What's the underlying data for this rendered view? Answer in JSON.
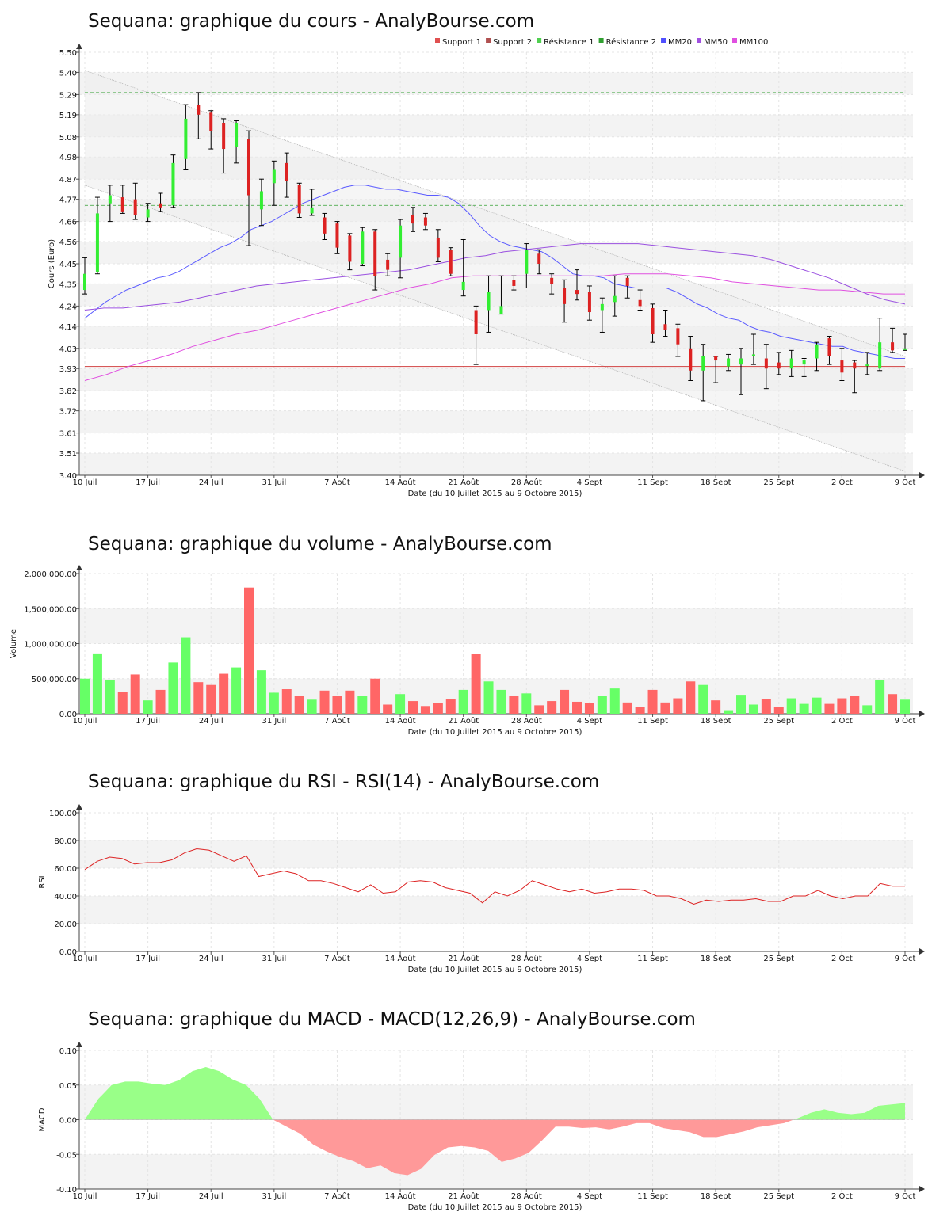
{
  "chart_data": [
    {
      "type": "candlestick",
      "title": "Sequana: graphique du cours - AnalyBourse.com",
      "xlabel": "Date (du 10 Juillet 2015 au 9 Octobre 2015)",
      "ylabel": "Cours (Euro)",
      "ylim": [
        3.4,
        5.5
      ],
      "y_ticks": [
        "3.40",
        "3.51",
        "3.61",
        "3.72",
        "3.82",
        "3.93",
        "4.03",
        "4.14",
        "4.24",
        "4.35",
        "4.45",
        "4.56",
        "4.66",
        "4.77",
        "4.87",
        "4.98",
        "5.08",
        "5.19",
        "5.29",
        "5.40",
        "5.50"
      ],
      "x_ticks": [
        {
          "label": "10 Juil",
          "index": 0
        },
        {
          "label": "17 Juil",
          "index": 5
        },
        {
          "label": "24 Juil",
          "index": 10
        },
        {
          "label": "31 Juil",
          "index": 15
        },
        {
          "label": "7 Août",
          "index": 20
        },
        {
          "label": "14 Août",
          "index": 25
        },
        {
          "label": "21 Août",
          "index": 30
        },
        {
          "label": "28 Août",
          "index": 35
        },
        {
          "label": "4 Sept",
          "index": 40
        },
        {
          "label": "11 Sept",
          "index": 45
        },
        {
          "label": "18 Sept",
          "index": 50
        },
        {
          "label": "25 Sept",
          "index": 55
        },
        {
          "label": "2 Oct",
          "index": 60
        },
        {
          "label": "9 Oct",
          "index": 65
        }
      ],
      "grid": true,
      "legend_position": "top-right",
      "legend": [
        {
          "name": "Support 1",
          "color": "#e05050"
        },
        {
          "name": "Support 2",
          "color": "#b05050"
        },
        {
          "name": "Résistance 1",
          "color": "#50d050"
        },
        {
          "name": "Résistance 2",
          "color": "#30a030"
        },
        {
          "name": "MM20",
          "color": "#5050ff"
        },
        {
          "name": "MM50",
          "color": "#a050e0"
        },
        {
          "name": "MM100",
          "color": "#e050e0"
        }
      ],
      "levels": {
        "support_1": 3.94,
        "support_2": 3.63,
        "resistance_1": 4.74,
        "resistance_2": 5.3
      },
      "channel": {
        "upper": [
          5.41,
          3.99
        ],
        "lower": [
          4.84,
          3.42
        ]
      },
      "candles": [
        {
          "o": 4.32,
          "h": 4.48,
          "l": 4.3,
          "c": 4.4
        },
        {
          "o": 4.41,
          "h": 4.78,
          "l": 4.4,
          "c": 4.7
        },
        {
          "o": 4.75,
          "h": 4.84,
          "l": 4.66,
          "c": 4.79
        },
        {
          "o": 4.78,
          "h": 4.84,
          "l": 4.7,
          "c": 4.71
        },
        {
          "o": 4.77,
          "h": 4.85,
          "l": 4.67,
          "c": 4.69
        },
        {
          "o": 4.68,
          "h": 4.75,
          "l": 4.66,
          "c": 4.72
        },
        {
          "o": 4.75,
          "h": 4.8,
          "l": 4.71,
          "c": 4.73
        },
        {
          "o": 4.74,
          "h": 4.99,
          "l": 4.73,
          "c": 4.95
        },
        {
          "o": 4.97,
          "h": 5.24,
          "l": 4.92,
          "c": 5.17
        },
        {
          "o": 5.24,
          "h": 5.3,
          "l": 5.07,
          "c": 5.19
        },
        {
          "o": 5.2,
          "h": 5.21,
          "l": 5.02,
          "c": 5.11
        },
        {
          "o": 5.15,
          "h": 5.17,
          "l": 4.9,
          "c": 5.02
        },
        {
          "o": 5.03,
          "h": 5.16,
          "l": 4.95,
          "c": 5.15
        },
        {
          "o": 5.07,
          "h": 5.11,
          "l": 4.54,
          "c": 4.79
        },
        {
          "o": 4.72,
          "h": 4.87,
          "l": 4.64,
          "c": 4.81
        },
        {
          "o": 4.85,
          "h": 4.96,
          "l": 4.74,
          "c": 4.92
        },
        {
          "o": 4.95,
          "h": 5.0,
          "l": 4.78,
          "c": 4.86
        },
        {
          "o": 4.84,
          "h": 4.85,
          "l": 4.68,
          "c": 4.7
        },
        {
          "o": 4.7,
          "h": 4.82,
          "l": 4.69,
          "c": 4.73
        },
        {
          "o": 4.68,
          "h": 4.7,
          "l": 4.57,
          "c": 4.6
        },
        {
          "o": 4.65,
          "h": 4.66,
          "l": 4.5,
          "c": 4.53
        },
        {
          "o": 4.59,
          "h": 4.6,
          "l": 4.42,
          "c": 4.46
        },
        {
          "o": 4.45,
          "h": 4.63,
          "l": 4.44,
          "c": 4.61
        },
        {
          "o": 4.61,
          "h": 4.62,
          "l": 4.32,
          "c": 4.39
        },
        {
          "o": 4.47,
          "h": 4.5,
          "l": 4.39,
          "c": 4.42
        },
        {
          "o": 4.48,
          "h": 4.67,
          "l": 4.38,
          "c": 4.64
        },
        {
          "o": 4.69,
          "h": 4.73,
          "l": 4.61,
          "c": 4.65
        },
        {
          "o": 4.68,
          "h": 4.7,
          "l": 4.62,
          "c": 4.64
        },
        {
          "o": 4.58,
          "h": 4.62,
          "l": 4.46,
          "c": 4.48
        },
        {
          "o": 4.52,
          "h": 4.53,
          "l": 4.39,
          "c": 4.4
        },
        {
          "o": 4.32,
          "h": 4.57,
          "l": 4.29,
          "c": 4.36
        },
        {
          "o": 4.22,
          "h": 4.24,
          "l": 3.95,
          "c": 4.1
        },
        {
          "o": 4.22,
          "h": 4.39,
          "l": 4.11,
          "c": 4.31
        },
        {
          "o": 4.2,
          "h": 4.39,
          "l": 4.2,
          "c": 4.24
        },
        {
          "o": 4.37,
          "h": 4.39,
          "l": 4.32,
          "c": 4.34
        },
        {
          "o": 4.4,
          "h": 4.55,
          "l": 4.33,
          "c": 4.52
        },
        {
          "o": 4.5,
          "h": 4.52,
          "l": 4.4,
          "c": 4.45
        },
        {
          "o": 4.38,
          "h": 4.4,
          "l": 4.3,
          "c": 4.35
        },
        {
          "o": 4.33,
          "h": 4.37,
          "l": 4.16,
          "c": 4.25
        },
        {
          "o": 4.32,
          "h": 4.42,
          "l": 4.27,
          "c": 4.3
        },
        {
          "o": 4.31,
          "h": 4.34,
          "l": 4.17,
          "c": 4.21
        },
        {
          "o": 4.22,
          "h": 4.28,
          "l": 4.11,
          "c": 4.25
        },
        {
          "o": 4.26,
          "h": 4.39,
          "l": 4.19,
          "c": 4.29
        },
        {
          "o": 4.38,
          "h": 4.39,
          "l": 4.28,
          "c": 4.34
        },
        {
          "o": 4.27,
          "h": 4.32,
          "l": 4.22,
          "c": 4.24
        },
        {
          "o": 4.23,
          "h": 4.25,
          "l": 4.06,
          "c": 4.1
        },
        {
          "o": 4.15,
          "h": 4.22,
          "l": 4.09,
          "c": 4.12
        },
        {
          "o": 4.13,
          "h": 4.15,
          "l": 3.99,
          "c": 4.05
        },
        {
          "o": 4.03,
          "h": 4.09,
          "l": 3.87,
          "c": 3.92
        },
        {
          "o": 3.92,
          "h": 4.05,
          "l": 3.77,
          "c": 3.99
        },
        {
          "o": 3.99,
          "h": 3.99,
          "l": 3.86,
          "c": 3.97
        },
        {
          "o": 3.94,
          "h": 4.0,
          "l": 3.92,
          "c": 3.98
        },
        {
          "o": 3.95,
          "h": 4.03,
          "l": 3.8,
          "c": 3.98
        },
        {
          "o": 3.99,
          "h": 4.1,
          "l": 3.95,
          "c": 4.0
        },
        {
          "o": 3.98,
          "h": 4.05,
          "l": 3.83,
          "c": 3.93
        },
        {
          "o": 3.96,
          "h": 4.01,
          "l": 3.9,
          "c": 3.93
        },
        {
          "o": 3.93,
          "h": 4.02,
          "l": 3.89,
          "c": 3.98
        },
        {
          "o": 3.95,
          "h": 3.98,
          "l": 3.89,
          "c": 3.97
        },
        {
          "o": 3.98,
          "h": 4.06,
          "l": 3.92,
          "c": 4.05
        },
        {
          "o": 4.08,
          "h": 4.09,
          "l": 3.95,
          "c": 3.99
        },
        {
          "o": 3.97,
          "h": 4.03,
          "l": 3.87,
          "c": 3.91
        },
        {
          "o": 3.96,
          "h": 3.97,
          "l": 3.81,
          "c": 3.93
        },
        {
          "o": 3.95,
          "h": 4.01,
          "l": 3.9,
          "c": 3.95
        },
        {
          "o": 3.93,
          "h": 4.18,
          "l": 3.92,
          "c": 4.06
        },
        {
          "o": 4.06,
          "h": 4.13,
          "l": 4.01,
          "c": 4.02
        },
        {
          "o": 4.03,
          "h": 4.1,
          "l": 4.02,
          "c": 4.03
        }
      ],
      "series": [
        {
          "name": "MM20",
          "values": [
            4.18,
            4.22,
            4.26,
            4.29,
            4.32,
            4.34,
            4.36,
            4.38,
            4.39,
            4.41,
            4.44,
            4.47,
            4.5,
            4.53,
            4.55,
            4.58,
            4.62,
            4.64,
            4.66,
            4.69,
            4.72,
            4.75,
            4.77,
            4.79,
            4.81,
            4.83,
            4.84,
            4.84,
            4.83,
            4.82,
            4.82,
            4.81,
            4.8,
            4.79,
            4.79,
            4.78,
            4.75,
            4.7,
            4.64,
            4.59,
            4.56,
            4.54,
            4.53,
            4.52,
            4.51,
            4.48,
            4.44,
            4.4,
            4.39,
            4.39,
            4.38,
            4.35,
            4.34,
            4.33,
            4.33,
            4.33,
            4.33,
            4.31,
            4.28,
            4.25,
            4.23,
            4.2,
            4.18,
            4.17,
            4.14,
            4.12,
            4.11,
            4.09,
            4.08,
            4.07,
            4.06,
            4.05,
            4.04,
            4.04,
            4.02,
            4.01,
            4.0,
            3.99,
            3.98,
            3.98
          ]
        },
        {
          "name": "MM50",
          "values": [
            4.22,
            4.23,
            4.23,
            4.24,
            4.25,
            4.26,
            4.28,
            4.3,
            4.32,
            4.34,
            4.35,
            4.36,
            4.37,
            4.38,
            4.39,
            4.4,
            4.41,
            4.42,
            4.44,
            4.46,
            4.48,
            4.49,
            4.51,
            4.52,
            4.53,
            4.54,
            4.55,
            4.55,
            4.55,
            4.55,
            4.54,
            4.53,
            4.52,
            4.51,
            4.5,
            4.49,
            4.47,
            4.44,
            4.41,
            4.38,
            4.34,
            4.3,
            4.27,
            4.25
          ]
        },
        {
          "name": "MM100",
          "values": [
            3.87,
            3.9,
            3.94,
            3.97,
            4.0,
            4.04,
            4.07,
            4.1,
            4.12,
            4.15,
            4.18,
            4.21,
            4.24,
            4.27,
            4.3,
            4.33,
            4.35,
            4.38,
            4.39,
            4.39,
            4.39,
            4.39,
            4.39,
            4.39,
            4.39,
            4.4,
            4.4,
            4.4,
            4.39,
            4.38,
            4.36,
            4.35,
            4.34,
            4.33,
            4.32,
            4.32,
            4.31,
            4.3,
            4.3
          ]
        }
      ]
    },
    {
      "type": "bar",
      "title": "Sequana: graphique du volume - AnalyBourse.com",
      "xlabel": "Date (du 10 Juillet 2015 au 9 Octobre 2015)",
      "ylabel": "Volume",
      "ylim": [
        0,
        2000000
      ],
      "y_ticks": [
        "0.00",
        "500,000.00",
        "1,000,000.00",
        "1,500,000.00",
        "2,000,000.00"
      ],
      "grid": true,
      "values": [
        500000,
        860000,
        480000,
        310000,
        560000,
        190000,
        340000,
        730000,
        1090000,
        450000,
        410000,
        570000,
        660000,
        1800000,
        620000,
        300000,
        350000,
        250000,
        200000,
        330000,
        250000,
        330000,
        250000,
        500000,
        130000,
        280000,
        180000,
        110000,
        150000,
        210000,
        340000,
        850000,
        460000,
        340000,
        260000,
        290000,
        120000,
        180000,
        340000,
        170000,
        150000,
        250000,
        360000,
        160000,
        100000,
        340000,
        160000,
        220000,
        460000,
        410000,
        190000,
        50000,
        270000,
        130000,
        210000,
        100000,
        220000,
        140000,
        230000,
        140000,
        220000,
        260000,
        120000,
        480000,
        280000,
        200000
      ],
      "colors_up_down": [
        "#66ff66",
        "#ff6666"
      ]
    },
    {
      "type": "line",
      "title": "Sequana: graphique du RSI - RSI(14) - AnalyBourse.com",
      "xlabel": "Date (du 10 Juillet 2015 au 9 Octobre 2015)",
      "ylabel": "RSI",
      "ylim": [
        0,
        100
      ],
      "y_ticks": [
        "0.00",
        "20.00",
        "40.00",
        "60.00",
        "80.00",
        "100.00"
      ],
      "reference_line": 50,
      "grid": true,
      "series": [
        {
          "name": "RSI",
          "values": [
            59,
            65,
            68,
            67,
            63,
            64,
            64,
            66,
            71,
            74,
            73,
            69,
            65,
            69,
            54,
            56,
            58,
            56,
            51,
            51,
            49,
            46,
            43,
            48,
            42,
            43,
            50,
            51,
            50,
            46,
            44,
            42,
            35,
            43,
            40,
            44,
            51,
            48,
            45,
            43,
            45,
            42,
            43,
            45,
            45,
            44,
            40,
            40,
            38,
            34,
            37,
            36,
            37,
            37,
            38,
            36,
            36,
            40,
            40,
            44,
            40,
            38,
            40,
            40,
            49,
            47,
            47
          ]
        }
      ]
    },
    {
      "type": "area",
      "title": "Sequana: graphique du MACD - MACD(12,26,9) - AnalyBourse.com",
      "xlabel": "Date (du 10 Juillet 2015 au 9 Octobre 2015)",
      "ylabel": "MACD",
      "ylim": [
        -0.1,
        0.1
      ],
      "y_ticks": [
        "-0.10",
        "-0.05",
        "0.00",
        "0.05",
        "0.10"
      ],
      "grid": true,
      "series": [
        {
          "name": "MACD",
          "values": [
            0.0,
            0.03,
            0.05,
            0.055,
            0.055,
            0.052,
            0.05,
            0.057,
            0.07,
            0.076,
            0.07,
            0.058,
            0.05,
            0.03,
            0.0,
            -0.01,
            -0.02,
            -0.036,
            -0.046,
            -0.054,
            -0.06,
            -0.07,
            -0.066,
            -0.077,
            -0.08,
            -0.071,
            -0.051,
            -0.04,
            -0.038,
            -0.04,
            -0.045,
            -0.061,
            -0.056,
            -0.048,
            -0.03,
            -0.01,
            -0.01,
            -0.012,
            -0.011,
            -0.014,
            -0.01,
            -0.005,
            -0.005,
            -0.012,
            -0.015,
            -0.018,
            -0.025,
            -0.025,
            -0.021,
            -0.017,
            -0.011,
            -0.008,
            -0.005,
            0.002,
            0.01,
            0.015,
            0.01,
            0.008,
            0.01,
            0.02,
            0.022,
            0.024
          ]
        }
      ]
    }
  ]
}
